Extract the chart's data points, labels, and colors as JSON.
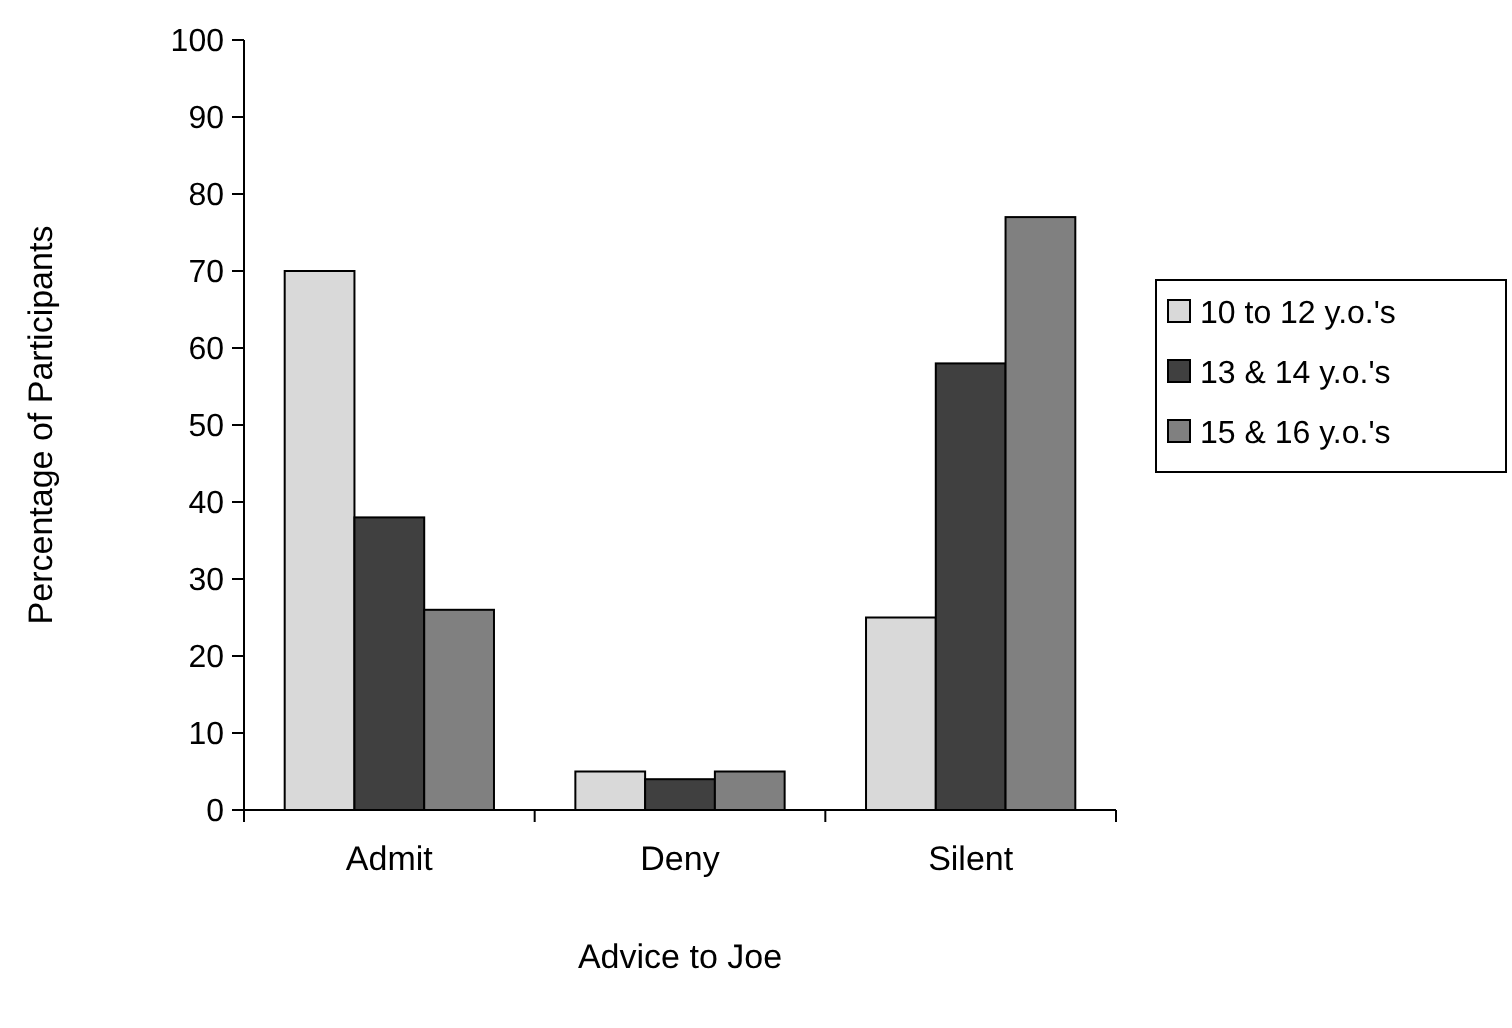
{
  "chart_data": {
    "type": "bar",
    "xlabel": "Advice to Joe",
    "ylabel": "Percentage of Participants",
    "categories": [
      "Admit",
      "Deny",
      "Silent"
    ],
    "series": [
      {
        "name": "10 to 12 y.o.'s",
        "color": "#d9d9d9",
        "values": [
          70,
          5,
          25
        ]
      },
      {
        "name": "13 & 14 y.o.'s",
        "color": "#404040",
        "values": [
          38,
          4,
          58
        ]
      },
      {
        "name": "15 & 16 y.o.'s",
        "color": "#808080",
        "values": [
          26,
          5,
          77
        ]
      }
    ],
    "ylim": [
      0,
      100
    ],
    "yticks": [
      0,
      10,
      20,
      30,
      40,
      50,
      60,
      70,
      80,
      90,
      100
    ],
    "grid": false,
    "legend": "right"
  }
}
